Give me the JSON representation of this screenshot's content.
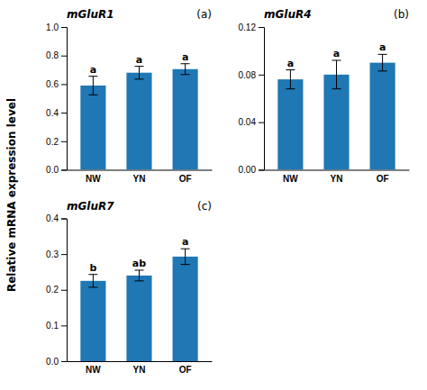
{
  "chart_data": [
    {
      "type": "bar",
      "title": "mGluR1",
      "subtitle": "(a)",
      "ylabel": "Relative mRNA expression level",
      "categories": [
        "NW",
        "YN",
        "OF"
      ],
      "values": [
        0.59,
        0.68,
        0.705
      ],
      "errors": [
        0.065,
        0.045,
        0.038
      ],
      "annotations": [
        "a",
        "a",
        "a"
      ],
      "ylim": [
        0,
        1.0
      ],
      "yticks": [
        {
          "value": 0,
          "label": "0.0"
        },
        0.2,
        0.4,
        0.6,
        0.8,
        {
          "value": 1.0,
          "label": "1.0"
        }
      ]
    },
    {
      "type": "bar",
      "title": "mGluR4",
      "subtitle": "(b)",
      "categories": [
        "NW",
        "YN",
        "OF"
      ],
      "values": [
        0.076,
        0.08,
        0.09
      ],
      "errors": [
        0.008,
        0.012,
        0.007
      ],
      "annotations": [
        "a",
        "a",
        "a"
      ],
      "ylim": [
        0,
        0.12
      ],
      "yticks": [
        {
          "value": 0,
          "label": "0.00"
        },
        0.04,
        0.08,
        0.12
      ]
    },
    {
      "type": "bar",
      "title": "mGluR7",
      "subtitle": "(c)",
      "categories": [
        "NW",
        "YN",
        "OF"
      ],
      "values": [
        0.225,
        0.24,
        0.293
      ],
      "errors": [
        0.018,
        0.015,
        0.022
      ],
      "annotations": [
        "b",
        "ab",
        "a"
      ],
      "ylim": [
        0,
        0.4
      ],
      "yticks": [
        {
          "value": 0,
          "label": "0.0"
        },
        0.1,
        0.2,
        0.3,
        0.4
      ]
    }
  ]
}
